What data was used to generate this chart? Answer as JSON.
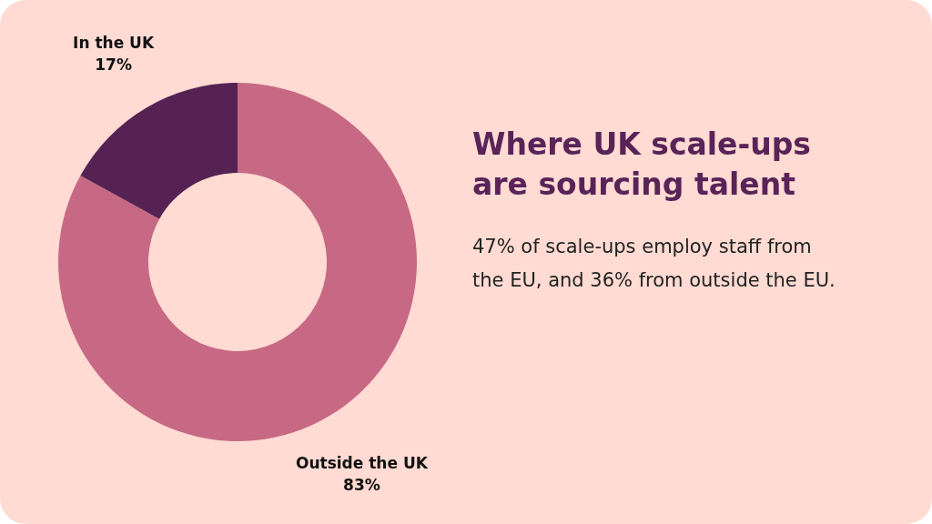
{
  "chart_data": {
    "type": "donut",
    "title": "Where UK scale-ups are sourcing talent",
    "annotations": [
      "47% of scale-ups employ staff from the EU, and 36% from outside the EU."
    ],
    "categories": [
      "Outside the UK",
      "In the UK"
    ],
    "values": [
      83,
      17
    ],
    "value_labels": [
      "83%",
      "17%"
    ],
    "colors": [
      "#c76984",
      "#552253"
    ],
    "legend": false
  }
}
